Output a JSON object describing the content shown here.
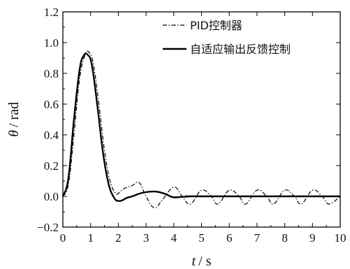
{
  "chart_data": {
    "type": "line",
    "xlabel_var": "t",
    "xlabel_unit": "/ s",
    "ylabel_var": "θ",
    "ylabel_unit": "/ rad",
    "xlim": [
      0,
      10
    ],
    "ylim": [
      -0.2,
      1.2
    ],
    "xticks": [
      0,
      1,
      2,
      3,
      4,
      5,
      6,
      7,
      8,
      9,
      10
    ],
    "yticks": [
      -0.2,
      0.0,
      0.2,
      0.4,
      0.6,
      0.8,
      1.0,
      1.2
    ],
    "ytick_labels": [
      "−0.2",
      "0.0",
      "0.2",
      "0.4",
      "0.6",
      "0.8",
      "1.0",
      "1.2"
    ],
    "grid": false,
    "legend_position": "top-right",
    "series": [
      {
        "name": "PID控制器",
        "style": "dash-dot",
        "color": "#000000",
        "x": [
          0,
          0.2,
          0.4,
          0.6,
          0.8,
          0.95,
          1.1,
          1.3,
          1.5,
          1.7,
          1.9,
          2.0,
          2.2,
          2.5,
          2.75,
          3.0,
          3.3,
          3.6,
          4.0,
          4.3,
          4.6,
          5.0,
          5.35,
          5.6,
          6.0,
          6.35,
          6.6,
          7.0,
          7.35,
          7.6,
          8.0,
          8.35,
          8.6,
          9.0,
          9.35,
          9.6,
          10.0
        ],
        "y": [
          0.0,
          0.08,
          0.4,
          0.76,
          0.92,
          0.935,
          0.86,
          0.6,
          0.3,
          0.1,
          0.02,
          0.02,
          0.05,
          0.07,
          0.09,
          0.0,
          -0.075,
          -0.02,
          0.06,
          0.0,
          -0.05,
          0.04,
          0.0,
          -0.05,
          0.04,
          0.0,
          -0.05,
          0.04,
          0.0,
          -0.05,
          0.04,
          0.0,
          -0.05,
          0.04,
          0.0,
          -0.05,
          0.0
        ]
      },
      {
        "name": "自适应输出反馈控制",
        "style": "solid",
        "color": "#000000",
        "x": [
          0,
          0.2,
          0.4,
          0.6,
          0.75,
          0.9,
          1.05,
          1.25,
          1.45,
          1.65,
          1.85,
          2.0,
          2.15,
          2.3,
          2.5,
          2.8,
          3.1,
          3.4,
          3.7,
          3.95,
          4.2,
          4.6,
          5.0,
          10.0
        ],
        "y": [
          0.0,
          0.12,
          0.5,
          0.82,
          0.915,
          0.92,
          0.85,
          0.58,
          0.28,
          0.08,
          -0.01,
          -0.03,
          -0.025,
          -0.01,
          0.0,
          0.02,
          0.03,
          0.03,
          0.015,
          -0.005,
          -0.005,
          0.0,
          0.0,
          0.0
        ]
      }
    ]
  }
}
